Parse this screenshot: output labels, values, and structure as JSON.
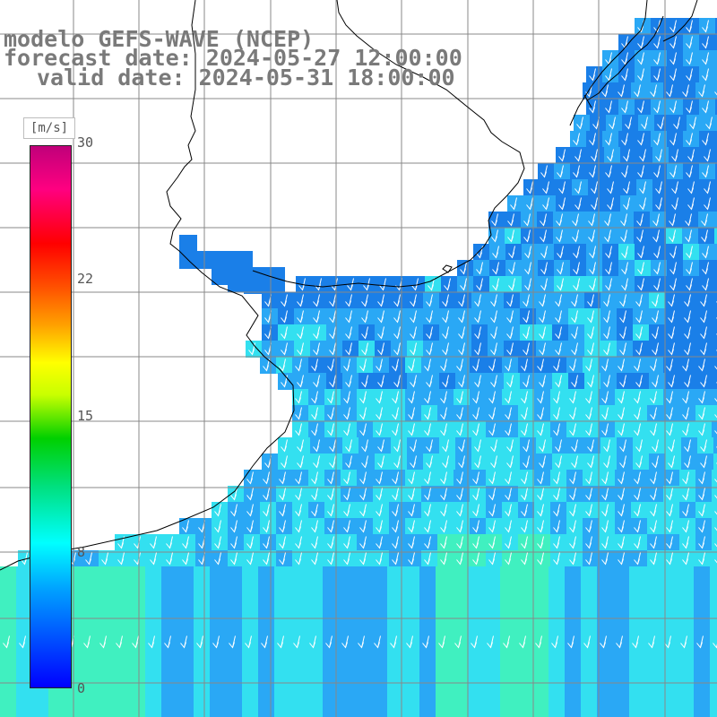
{
  "title": {
    "line1": "modelo GEFS-WAVE (NCEP)",
    "line2": "forecast date: 2024-05-27 12:00:00",
    "line3": "valid date: 2024-05-31 18:00:00"
  },
  "colorbar": {
    "unit": "[m/s]",
    "ticks": [
      "30",
      "22",
      "15",
      "8",
      "0"
    ],
    "min": 0,
    "max": 30,
    "colors": [
      "#0000ff",
      "#00a0ff",
      "#00ffff",
      "#00d000",
      "#ffff00",
      "#ff5000",
      "#ff0000",
      "#c0007a"
    ]
  },
  "map": {
    "ocean_speed_range_mps": [
      5,
      9
    ],
    "field_colors": {
      "slow": "#1a7fe8",
      "medium": "#2aa8f5",
      "fast": "#33e0f0",
      "peak": "#40f0c0"
    },
    "land_color": "#ffffff",
    "coast_color": "#000000",
    "grid_color": "#888888",
    "arrow_color": "#ffffff",
    "arrow_direction": "southward (toward south-southwest)"
  }
}
